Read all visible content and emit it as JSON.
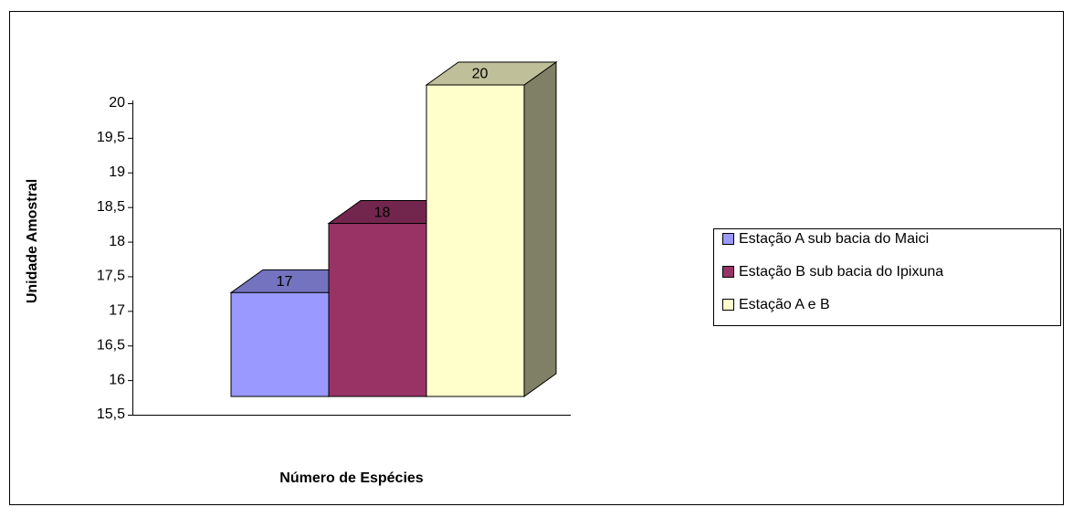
{
  "chart_data": {
    "type": "bar3d",
    "y_label": "Unidade Amostral",
    "x_label": "Número de Espécies",
    "series": [
      {
        "name": "Estação A sub bacia do Maici",
        "color": "#9999ff",
        "values": [
          17
        ]
      },
      {
        "name": "Estação B sub bacia do Ipixuna",
        "color": "#993366",
        "values": [
          18
        ]
      },
      {
        "name": "Estação A e B",
        "color": "#ffffcc",
        "values": [
          20
        ]
      }
    ],
    "ylim": [
      15.5,
      20
    ],
    "yticks": [
      {
        "value": 15.5,
        "label": "15,5"
      },
      16,
      {
        "value": 16.5,
        "label": "16,5"
      },
      17,
      {
        "value": 17.5,
        "label": "17,5"
      },
      18,
      {
        "value": 18.5,
        "label": "18,5"
      },
      19,
      {
        "value": 19.5,
        "label": "19,5"
      },
      20
    ],
    "legend": "right"
  }
}
